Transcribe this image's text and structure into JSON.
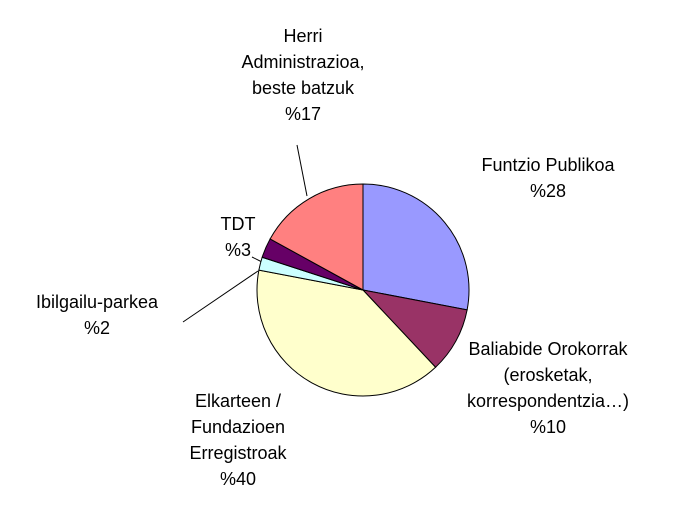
{
  "chart_data": {
    "type": "pie",
    "categories": [
      "Funtzio Publikoa",
      "Baliabide Orokorrak\n(erosketak,\nkorrespondentzia…)",
      "Elkarteen /\nFundazioen\nErregistroak",
      "Ibilgailu-parkea",
      "TDT",
      "Herri\nAdministrazioa,\nbeste batzuk"
    ],
    "values": [
      28,
      10,
      40,
      2,
      3,
      17
    ],
    "value_labels": [
      "%28",
      "%10",
      "%40",
      "%2",
      "%3",
      "%17"
    ],
    "colors": [
      "#9999ff",
      "#993366",
      "#ffffcc",
      "#ccffff",
      "#660066",
      "#ff8080"
    ]
  }
}
